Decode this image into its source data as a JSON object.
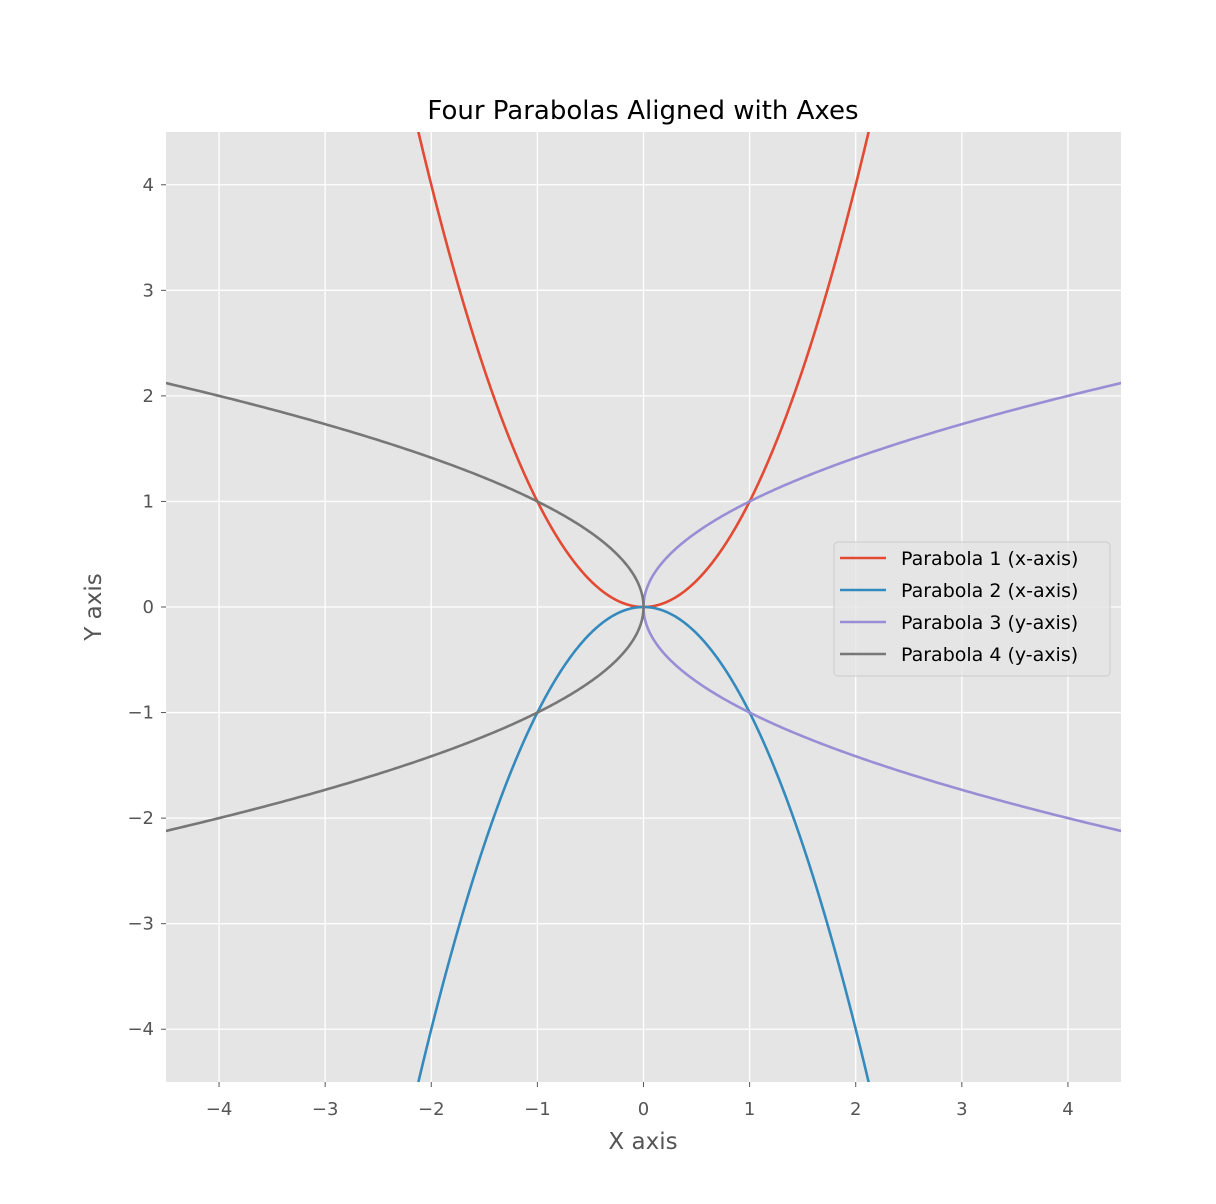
{
  "chart_data": {
    "type": "line",
    "title": "Four Parabolas Aligned with Axes",
    "xlabel": "X axis",
    "ylabel": "Y axis",
    "xlim": [
      -4.5,
      4.5
    ],
    "ylim": [
      -4.5,
      4.5
    ],
    "grid": true,
    "legend_position": "center-right",
    "xticks": [
      -4,
      -3,
      -2,
      -1,
      0,
      1,
      2,
      3,
      4
    ],
    "yticks": [
      -4,
      -3,
      -2,
      -1,
      0,
      1,
      2,
      3,
      4
    ],
    "xtick_labels": [
      "−4",
      "−3",
      "−2",
      "−1",
      "0",
      "1",
      "2",
      "3",
      "4"
    ],
    "ytick_labels": [
      "−4",
      "−3",
      "−2",
      "−1",
      "0",
      "1",
      "2",
      "3",
      "4"
    ],
    "series": [
      {
        "name": "Parabola 1 (x-axis)",
        "equation": "y = x^2",
        "color": "#E24A33",
        "points": [
          [
            -2.121,
            4.5
          ],
          [
            -2,
            4
          ],
          [
            -1.5,
            2.25
          ],
          [
            -1,
            1
          ],
          [
            -0.5,
            0.25
          ],
          [
            0,
            0
          ],
          [
            0.5,
            0.25
          ],
          [
            1,
            1
          ],
          [
            1.5,
            2.25
          ],
          [
            2,
            4
          ],
          [
            2.121,
            4.5
          ]
        ]
      },
      {
        "name": "Parabola 2 (x-axis)",
        "equation": "y = -x^2",
        "color": "#348ABD",
        "points": [
          [
            -2.121,
            -4.5
          ],
          [
            -2,
            -4
          ],
          [
            -1.5,
            -2.25
          ],
          [
            -1,
            -1
          ],
          [
            -0.5,
            -0.25
          ],
          [
            0,
            0
          ],
          [
            0.5,
            -0.25
          ],
          [
            1,
            -1
          ],
          [
            1.5,
            -2.25
          ],
          [
            2,
            -4
          ],
          [
            2.121,
            -4.5
          ]
        ]
      },
      {
        "name": "Parabola 3 (y-axis)",
        "equation": "x = y^2",
        "color": "#988ED5",
        "points": [
          [
            4.5,
            -2.121
          ],
          [
            4,
            -2
          ],
          [
            2.25,
            -1.5
          ],
          [
            1,
            -1
          ],
          [
            0.25,
            -0.5
          ],
          [
            0,
            0
          ],
          [
            0.25,
            0.5
          ],
          [
            1,
            1
          ],
          [
            2.25,
            1.5
          ],
          [
            4,
            2
          ],
          [
            4.5,
            2.121
          ]
        ]
      },
      {
        "name": "Parabola 4 (y-axis)",
        "equation": "x = -y^2",
        "color": "#777777",
        "points": [
          [
            -4.5,
            -2.121
          ],
          [
            -4,
            -2
          ],
          [
            -2.25,
            -1.5
          ],
          [
            -1,
            -1
          ],
          [
            -0.25,
            -0.5
          ],
          [
            0,
            0
          ],
          [
            -0.25,
            0.5
          ],
          [
            -1,
            1
          ],
          [
            -2.25,
            1.5
          ],
          [
            -4,
            2
          ],
          [
            -4.5,
            2.121
          ]
        ]
      }
    ]
  }
}
